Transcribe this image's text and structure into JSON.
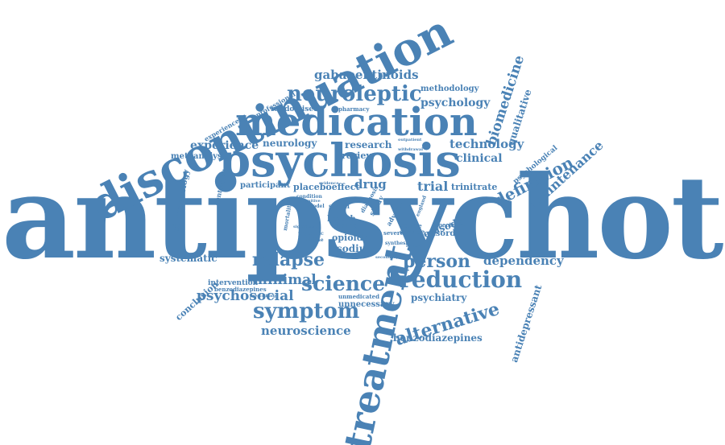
{
  "color": "#4a82b5",
  "words": [
    {
      "id": "antipsychotic",
      "text": "antipsychotic"
    },
    {
      "id": "discontinuation",
      "text": "discontinuation"
    },
    {
      "id": "psychosis",
      "text": "psychosis"
    },
    {
      "id": "medication",
      "text": "medication"
    },
    {
      "id": "treatment",
      "text": "treatment"
    },
    {
      "id": "neuroleptic",
      "text": "neuroleptic"
    },
    {
      "id": "gabapentinoids",
      "text": "gabapentinoids"
    },
    {
      "id": "methodology",
      "text": "methodology"
    },
    {
      "id": "psychology",
      "text": "psychology"
    },
    {
      "id": "biomedicine",
      "text": "biomedicine"
    },
    {
      "id": "qualitative",
      "text": "qualitative"
    },
    {
      "id": "technology",
      "text": "technology"
    },
    {
      "id": "clinical",
      "text": "clinical"
    },
    {
      "id": "definition",
      "text": "definition"
    },
    {
      "id": "maintenance",
      "text": "maintenance"
    },
    {
      "id": "psychological",
      "text": "psychological"
    },
    {
      "id": "experience",
      "text": "experience"
    },
    {
      "id": "neurology",
      "text": "neurology"
    },
    {
      "id": "research",
      "text": "research"
    },
    {
      "id": "metaanalysis",
      "text": "metaanalysis"
    },
    {
      "id": "randomised",
      "text": "randomised"
    },
    {
      "id": "pharmacy",
      "text": "pharmacy"
    },
    {
      "id": "professional",
      "text": "professional"
    },
    {
      "id": "experienced",
      "text": "experienced"
    },
    {
      "id": "participant",
      "text": "participant"
    },
    {
      "id": "placeboeffect",
      "text": "placeboeffect"
    },
    {
      "id": "drug",
      "text": "drug"
    },
    {
      "id": "trial",
      "text": "trial"
    },
    {
      "id": "trinitrate",
      "text": "trinitrate"
    },
    {
      "id": "pharmacology",
      "text": "pharmacology"
    },
    {
      "id": "controlled",
      "text": "controlled"
    },
    {
      "id": "relapse",
      "text": "relapse"
    },
    {
      "id": "sodium",
      "text": "sodium"
    },
    {
      "id": "person",
      "text": "person"
    },
    {
      "id": "dependency",
      "text": "dependency"
    },
    {
      "id": "systematic",
      "text": "systematic"
    },
    {
      "id": "minimal",
      "text": "minimal"
    },
    {
      "id": "science",
      "text": "science"
    },
    {
      "id": "reduction",
      "text": "reduction"
    },
    {
      "id": "intervention",
      "text": "intervention"
    },
    {
      "id": "benzodiazepines-small",
      "text": "benzodiazepines"
    },
    {
      "id": "psychosocial",
      "text": "psychosocial"
    },
    {
      "id": "conclusion",
      "text": "conclusion"
    },
    {
      "id": "symptom",
      "text": "symptom"
    },
    {
      "id": "unmedicated",
      "text": "unmedicated"
    },
    {
      "id": "unnecessary",
      "text": "unnecessary"
    },
    {
      "id": "psychiatry",
      "text": "psychiatry"
    },
    {
      "id": "alternative",
      "text": "alternative"
    },
    {
      "id": "neuroscience",
      "text": "neuroscience"
    },
    {
      "id": "benzodiazepines",
      "text": "benzodiazepines"
    },
    {
      "id": "antidepressant",
      "text": "antidepressant"
    },
    {
      "id": "episode",
      "text": "episode"
    },
    {
      "id": "disorder",
      "text": "disorder"
    },
    {
      "id": "spectrum",
      "text": "spectrum"
    },
    {
      "id": "service",
      "text": "service"
    },
    {
      "id": "double",
      "text": "double"
    },
    {
      "id": "opioids",
      "text": "opioids"
    },
    {
      "id": "taking",
      "text": "taking"
    },
    {
      "id": "health",
      "text": "health"
    },
    {
      "id": "review",
      "text": "review"
    },
    {
      "id": "severe",
      "text": "severe"
    },
    {
      "id": "synthesis",
      "text": "synthesis"
    },
    {
      "id": "social",
      "text": "social"
    },
    {
      "id": "model",
      "text": "model"
    },
    {
      "id": "guideline",
      "text": "guideline"
    },
    {
      "id": "psychotic",
      "text": "psychotic"
    },
    {
      "id": "significant",
      "text": "significant"
    },
    {
      "id": "mortality",
      "text": "mortality"
    },
    {
      "id": "condition",
      "text": "condition"
    },
    {
      "id": "cognitive",
      "text": "cognitive"
    },
    {
      "id": "adverse",
      "text": "adverse"
    },
    {
      "id": "study",
      "text": "study"
    },
    {
      "id": "diagnosis",
      "text": "diagnosis"
    },
    {
      "id": "evidence",
      "text": "evidence"
    },
    {
      "id": "withdrawal",
      "text": "withdrawal"
    },
    {
      "id": "outpatient",
      "text": "outpatient"
    },
    {
      "id": "england",
      "text": "england"
    },
    {
      "id": "related",
      "text": "related"
    },
    {
      "id": "secondary",
      "text": "secondary"
    },
    {
      "id": "prescribing",
      "text": "prescribing"
    }
  ]
}
